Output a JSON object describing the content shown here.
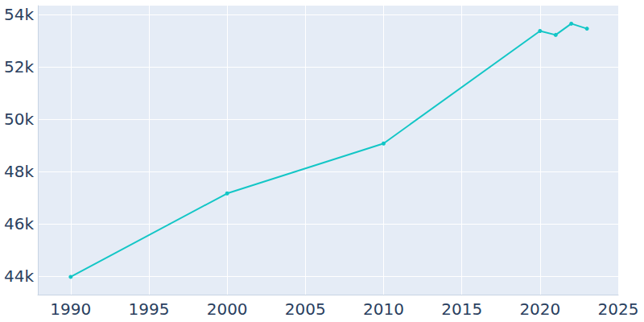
{
  "chart_data": {
    "type": "line",
    "x": [
      1990,
      2000,
      2010,
      2020,
      2021,
      2022,
      2023
    ],
    "values": [
      43980,
      47170,
      49080,
      53380,
      53230,
      53660,
      53470
    ],
    "color": "#13c6c6",
    "marker": "circle",
    "xlim": [
      1987.9,
      2025
    ],
    "xticks": [
      1990,
      1995,
      2000,
      2005,
      2010,
      2015,
      2020,
      2025
    ],
    "ylim": [
      43300,
      54350
    ],
    "yticks": [
      {
        "value": 44000,
        "label": "44k"
      },
      {
        "value": 46000,
        "label": "46k"
      },
      {
        "value": 48000,
        "label": "48k"
      },
      {
        "value": 50000,
        "label": "50k"
      },
      {
        "value": 52000,
        "label": "52k"
      },
      {
        "value": 54000,
        "label": "54k"
      }
    ],
    "grid": true
  }
}
